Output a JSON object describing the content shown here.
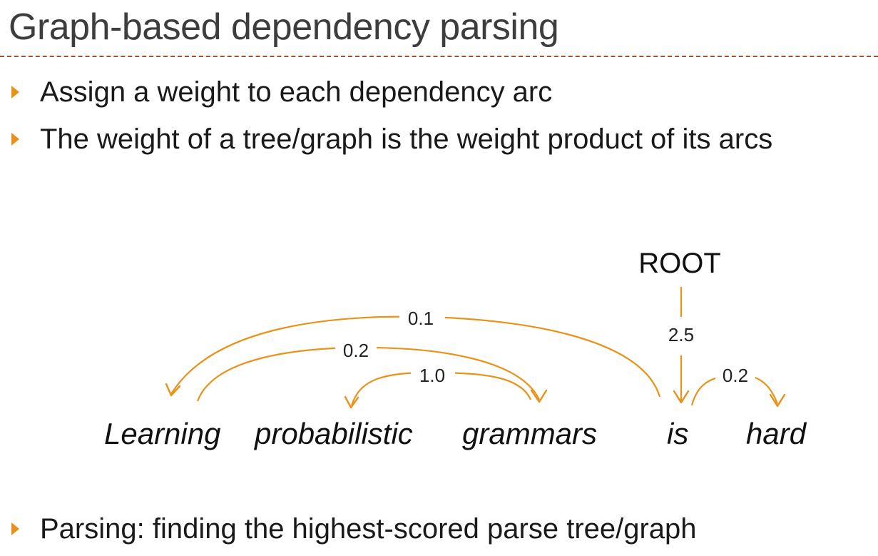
{
  "title": "Graph-based dependency parsing",
  "bullets": [
    "Assign a weight to each dependency arc",
    "The weight of a tree/graph is the weight product of its arcs",
    "Parsing: finding the highest-scored parse tree/graph"
  ],
  "diagram": {
    "root_label": "ROOT",
    "words": [
      "Learning",
      "probabilistic",
      "grammars",
      "is",
      "hard"
    ],
    "arcs": [
      {
        "head": "is",
        "dependent": "Learning",
        "weight": "0.1"
      },
      {
        "head": "Learning",
        "dependent": "grammars",
        "weight": "0.2"
      },
      {
        "head": "grammars",
        "dependent": "probabilistic",
        "weight": "1.0"
      },
      {
        "head": "ROOT",
        "dependent": "is",
        "weight": "2.5"
      },
      {
        "head": "is",
        "dependent": "hard",
        "weight": "0.2"
      }
    ],
    "arc_color": "#e8921a",
    "rule_color": "#a0522d"
  }
}
